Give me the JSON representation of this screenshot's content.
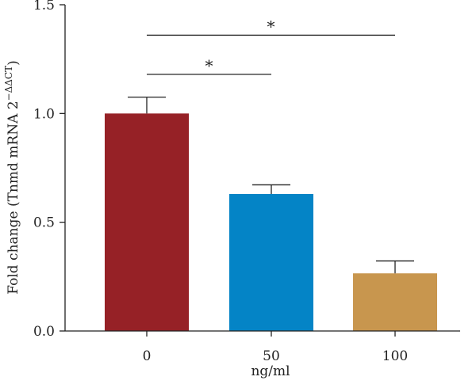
{
  "chart_data": {
    "type": "bar",
    "categories": [
      "0",
      "50",
      "100"
    ],
    "values": [
      1.0,
      0.63,
      0.265
    ],
    "error_upper": [
      1.075,
      0.672,
      0.322
    ],
    "colors": [
      "#962126",
      "#0484c6",
      "#c8964e"
    ],
    "ylim": [
      0,
      1.5
    ],
    "yticks": [
      "0.0",
      "0.5",
      "1.0",
      "1.5"
    ],
    "xlabel": "ng/ml",
    "ylabel_main": "Fold change (Tnmd mRNA 2",
    "ylabel_sup": "−ΔΔCT",
    "ylabel_close": ")",
    "grid": false,
    "legend": "none",
    "significance": [
      {
        "from": 0,
        "to": 1,
        "label": "*",
        "y": 1.18
      },
      {
        "from": 0,
        "to": 2,
        "label": "*",
        "y": 1.36
      }
    ]
  }
}
